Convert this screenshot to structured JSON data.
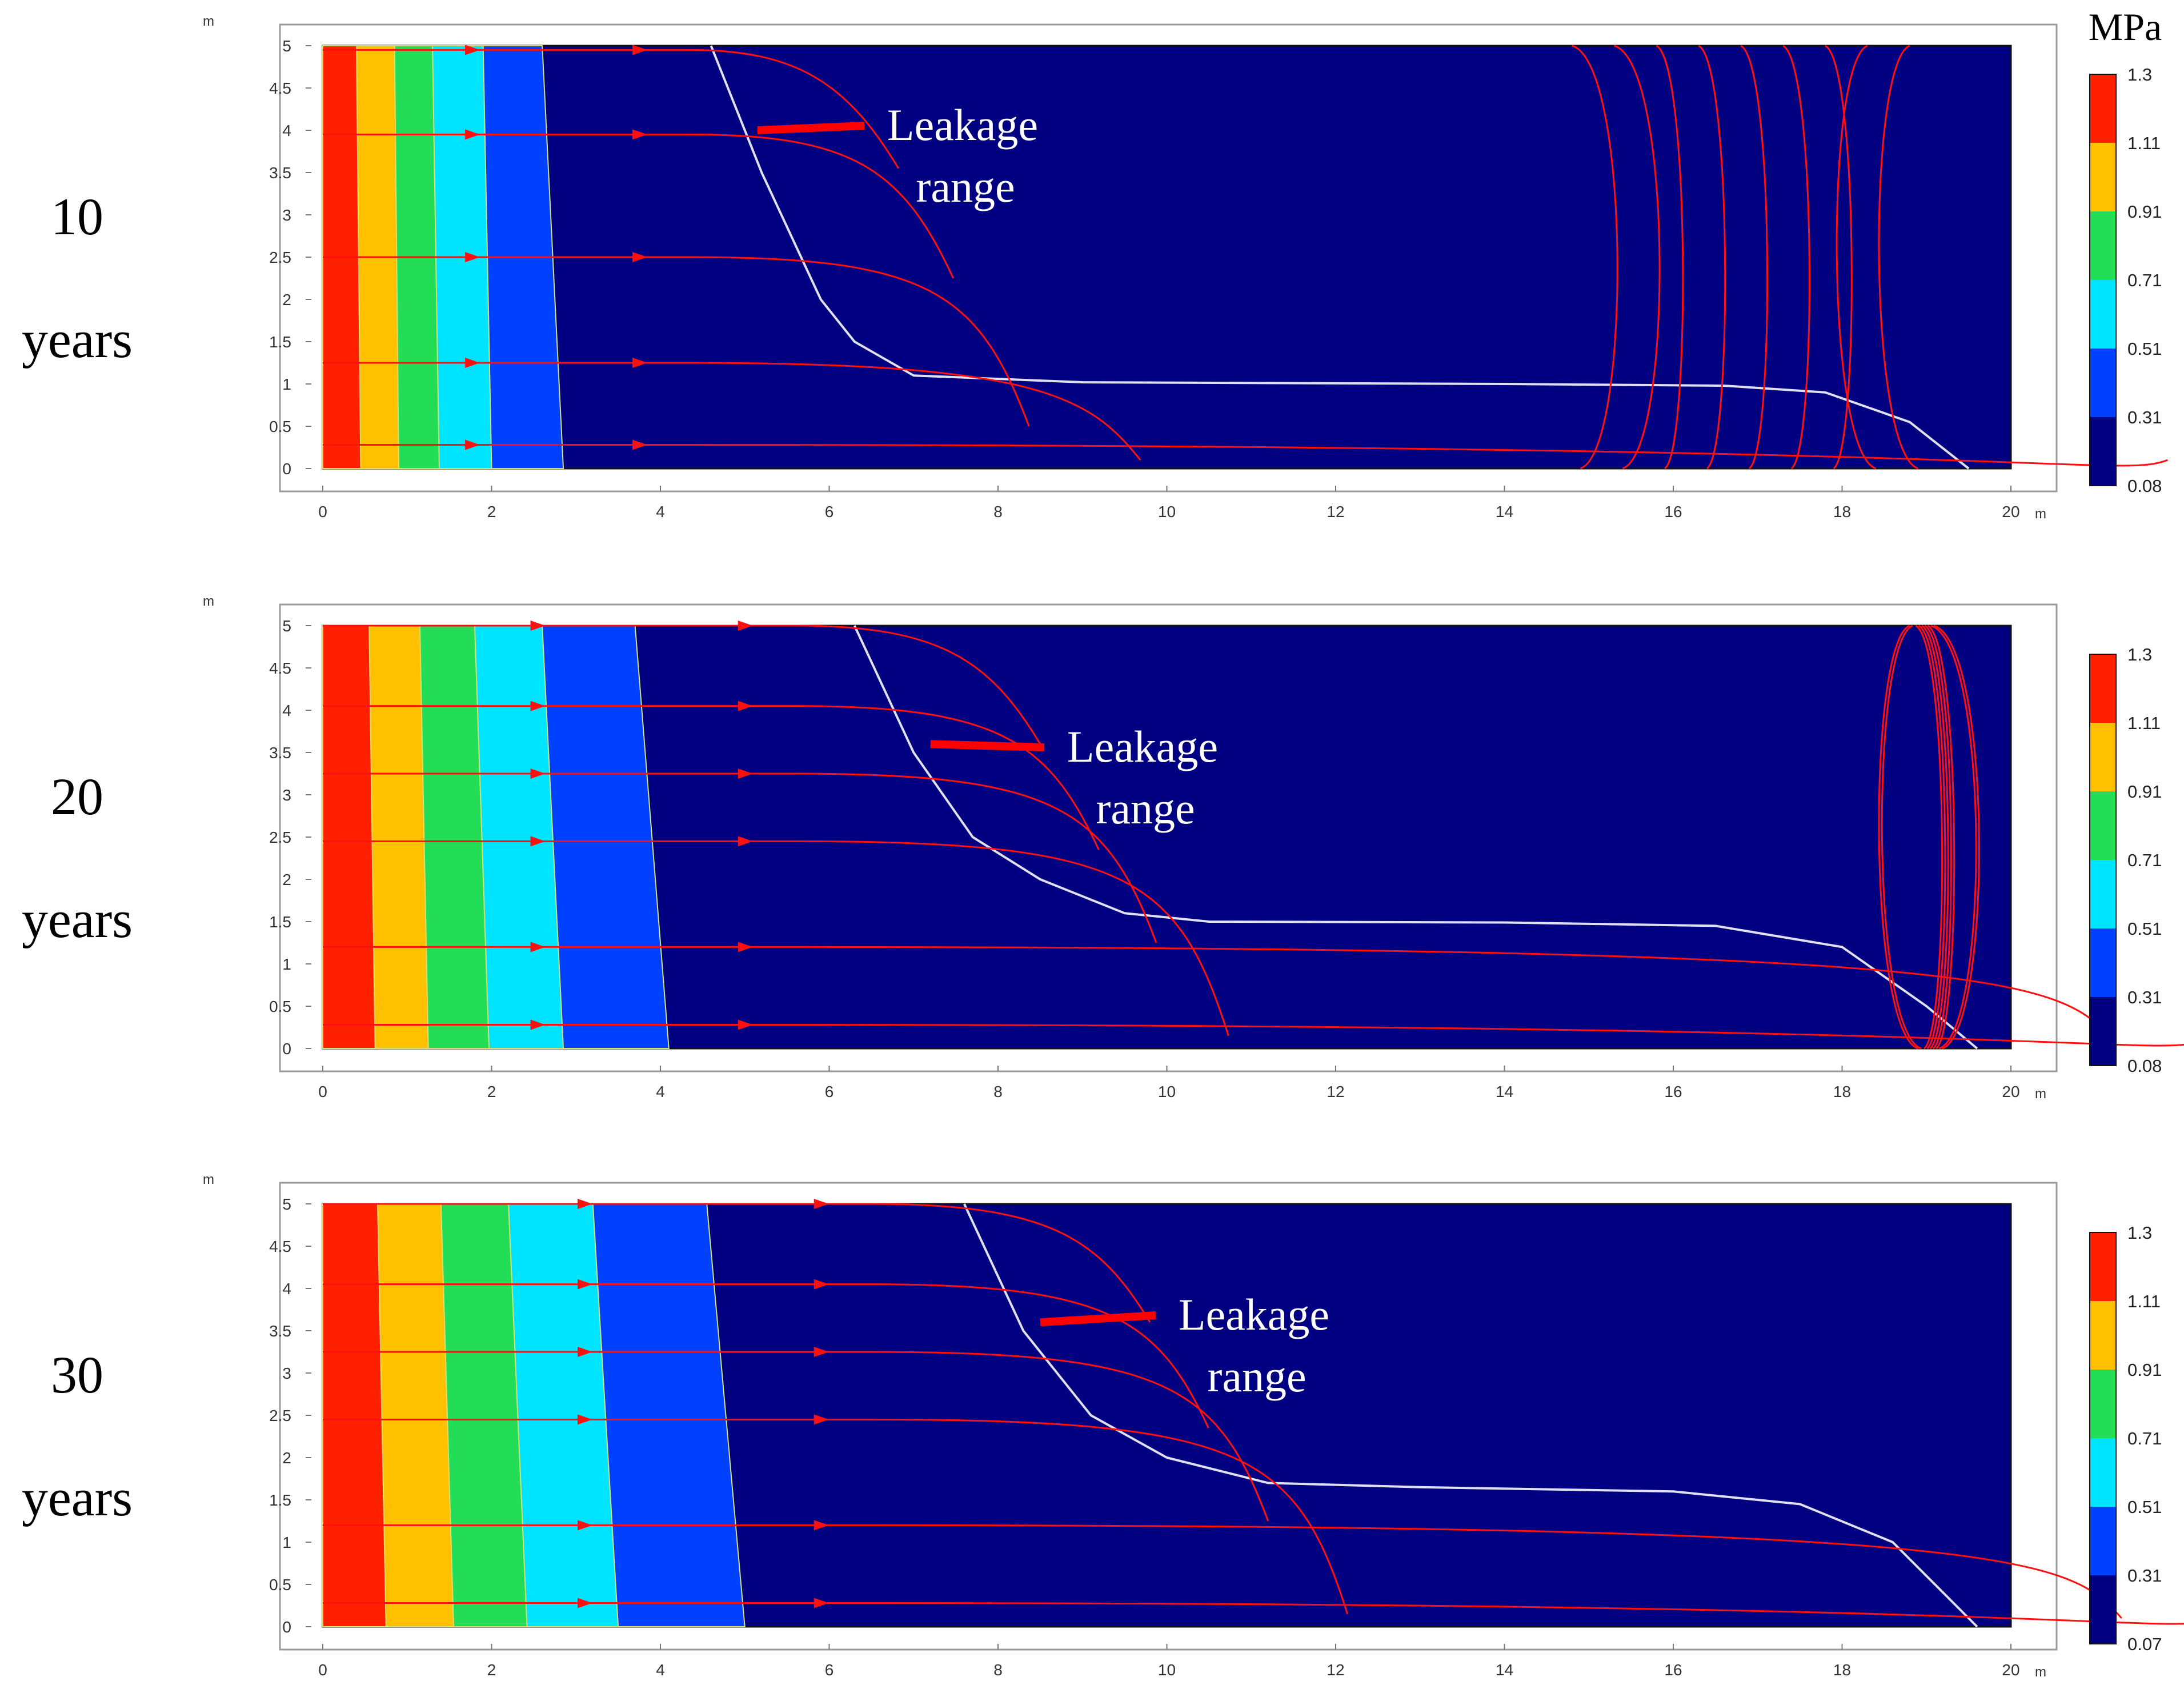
{
  "colorbar_unit": "MPa",
  "colorbar_colors": [
    "#000080",
    "#0040ff",
    "#00e5ff",
    "#22dd55",
    "#ffc000",
    "#ff2000"
  ],
  "streamline_color": "#ff1010",
  "front_color": "#e0e0f0",
  "chart_data": [
    {
      "type": "contour",
      "row_label": [
        "10",
        "years"
      ],
      "annotation": [
        "Leakage",
        "range"
      ],
      "x_unit": "m",
      "y_unit": "m",
      "xlim": [
        0,
        20
      ],
      "ylim": [
        0,
        5
      ],
      "x_ticks": [
        "0",
        "2",
        "4",
        "6",
        "8",
        "10",
        "12",
        "14",
        "16",
        "18",
        "20"
      ],
      "y_ticks": [
        "0",
        "0.5",
        "1",
        "1.5",
        "2",
        "2.5",
        "3",
        "3.5",
        "4",
        "4.5",
        "5"
      ],
      "colorbar_ticks": [
        "1.3",
        "1.11",
        "0.91",
        "0.71",
        "0.51",
        "0.31",
        "0.08"
      ],
      "bands": [
        {
          "top": 0.4,
          "bottom": 0.45,
          "color": "#ff2000"
        },
        {
          "top": 0.85,
          "bottom": 0.9,
          "color": "#ffc000"
        },
        {
          "top": 1.3,
          "bottom": 1.38,
          "color": "#22dd55"
        },
        {
          "top": 1.9,
          "bottom": 2.0,
          "color": "#00e5ff"
        },
        {
          "top": 2.6,
          "bottom": 2.85,
          "color": "#0040ff"
        }
      ],
      "leak_front": [
        [
          4.6,
          5
        ],
        [
          5.2,
          3.5
        ],
        [
          5.9,
          2
        ],
        [
          6.3,
          1.5
        ],
        [
          7,
          1.1
        ],
        [
          9,
          1.02
        ],
        [
          14,
          1.0
        ],
        [
          16.6,
          0.98
        ],
        [
          17.8,
          0.9
        ],
        [
          18.8,
          0.55
        ],
        [
          19.5,
          0
        ]
      ]
    },
    {
      "type": "contour",
      "row_label": [
        "20",
        "years"
      ],
      "annotation": [
        "Leakage",
        "range"
      ],
      "x_unit": "m",
      "y_unit": "m",
      "xlim": [
        0,
        20
      ],
      "ylim": [
        0,
        5
      ],
      "x_ticks": [
        "0",
        "2",
        "4",
        "6",
        "8",
        "10",
        "12",
        "14",
        "16",
        "18",
        "20"
      ],
      "y_ticks": [
        "0",
        "0.5",
        "1",
        "1.5",
        "2",
        "2.5",
        "3",
        "3.5",
        "4",
        "4.5",
        "5"
      ],
      "colorbar_ticks": [
        "1.3",
        "1.11",
        "0.91",
        "0.71",
        "0.51",
        "0.31",
        "0.08"
      ],
      "bands": [
        {
          "top": 0.55,
          "bottom": 0.62,
          "color": "#ff2000"
        },
        {
          "top": 1.15,
          "bottom": 1.25,
          "color": "#ffc000"
        },
        {
          "top": 1.8,
          "bottom": 1.97,
          "color": "#22dd55"
        },
        {
          "top": 2.6,
          "bottom": 2.85,
          "color": "#00e5ff"
        },
        {
          "top": 3.7,
          "bottom": 4.1,
          "color": "#0040ff"
        }
      ],
      "leak_front": [
        [
          6.3,
          5
        ],
        [
          7.0,
          3.5
        ],
        [
          7.7,
          2.5
        ],
        [
          8.5,
          2
        ],
        [
          9.5,
          1.6
        ],
        [
          10.5,
          1.5
        ],
        [
          14,
          1.49
        ],
        [
          16.5,
          1.45
        ],
        [
          18,
          1.2
        ],
        [
          19,
          0.5
        ],
        [
          19.6,
          0
        ]
      ]
    },
    {
      "type": "contour",
      "row_label": [
        "30",
        "years"
      ],
      "annotation": [
        "Leakage",
        "range"
      ],
      "x_unit": "m",
      "y_unit": "m",
      "xlim": [
        0,
        20
      ],
      "ylim": [
        0,
        5
      ],
      "x_ticks": [
        "0",
        "2",
        "4",
        "6",
        "8",
        "10",
        "12",
        "14",
        "16",
        "18",
        "20"
      ],
      "y_ticks": [
        "0",
        "0.5",
        "1",
        "1.5",
        "2",
        "2.5",
        "3",
        "3.5",
        "4",
        "4.5",
        "5"
      ],
      "colorbar_ticks": [
        "1.3",
        "1.11",
        "0.91",
        "0.71",
        "0.51",
        "0.31",
        "0.07"
      ],
      "bands": [
        {
          "top": 0.65,
          "bottom": 0.75,
          "color": "#ff2000"
        },
        {
          "top": 1.4,
          "bottom": 1.55,
          "color": "#ffc000"
        },
        {
          "top": 2.2,
          "bottom": 2.42,
          "color": "#22dd55"
        },
        {
          "top": 3.2,
          "bottom": 3.5,
          "color": "#00e5ff"
        },
        {
          "top": 4.55,
          "bottom": 5.0,
          "color": "#0040ff"
        }
      ],
      "leak_front": [
        [
          7.6,
          5
        ],
        [
          8.3,
          3.5
        ],
        [
          9.1,
          2.5
        ],
        [
          10.0,
          2
        ],
        [
          11.2,
          1.7
        ],
        [
          13,
          1.65
        ],
        [
          16,
          1.6
        ],
        [
          17.5,
          1.45
        ],
        [
          18.6,
          1.0
        ],
        [
          19.2,
          0.4
        ],
        [
          19.6,
          0
        ]
      ]
    }
  ]
}
